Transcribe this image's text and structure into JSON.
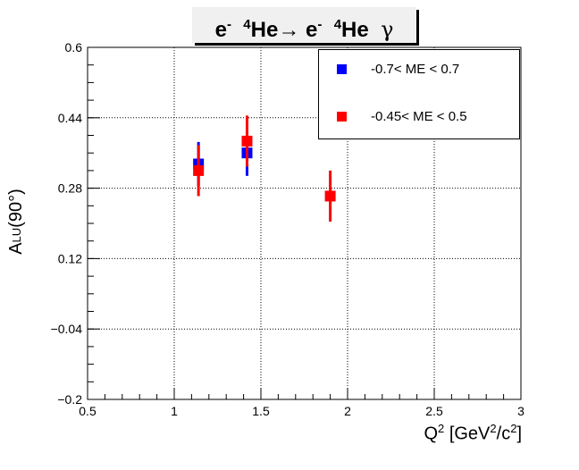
{
  "chart_data": {
    "type": "scatter",
    "title_parts": {
      "e1": "e",
      "minus1": "-",
      "sup1": "4",
      "he1": "He",
      "arrow": "→",
      "e2": " e",
      "minus2": "-",
      "sup2": "4",
      "he2": "He",
      "gamma": "γ"
    },
    "xlabel_parts": {
      "q": "Q",
      "sup_q": "2",
      "unit_a": " [GeV",
      "sup_a": "2",
      "unit_b": "/c",
      "sup_b": "2",
      "close": "]"
    },
    "ylabel_parts": {
      "a": "A",
      "sub": "LU",
      "rest": "(90°)"
    },
    "xlim": [
      0.5,
      3.0
    ],
    "ylim": [
      -0.2,
      0.6
    ],
    "x_ticks": [
      "0.5",
      "1",
      "1.5",
      "2",
      "2.5",
      "3"
    ],
    "y_ticks": [
      "−0.2",
      "−0.04",
      "0.12",
      "0.28",
      "0.44",
      "0.6"
    ],
    "x_tick_values": [
      0.5,
      1.0,
      1.5,
      2.0,
      2.5,
      3.0
    ],
    "y_tick_values": [
      -0.2,
      -0.04,
      0.12,
      0.28,
      0.44,
      0.6
    ],
    "grid": true,
    "legend_position": "top-right",
    "series": [
      {
        "name": "-0.7< ME < 0.7",
        "color": "#0000ff",
        "points": [
          {
            "x": 1.14,
            "y": 0.335,
            "err": 0.05
          },
          {
            "x": 1.42,
            "y": 0.36,
            "err": 0.052
          }
        ]
      },
      {
        "name": "-0.45< ME < 0.5",
        "color": "#ff0000",
        "points": [
          {
            "x": 1.14,
            "y": 0.32,
            "err": 0.058
          },
          {
            "x": 1.42,
            "y": 0.387,
            "err": 0.058
          },
          {
            "x": 1.9,
            "y": 0.262,
            "err": 0.058
          }
        ]
      }
    ]
  }
}
